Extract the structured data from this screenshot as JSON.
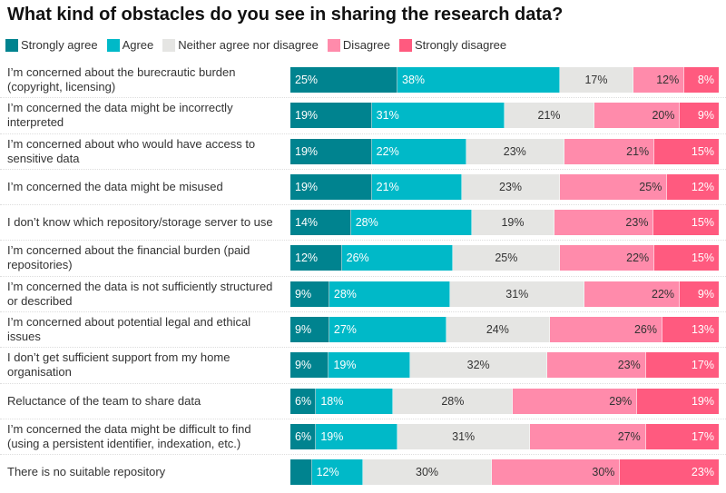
{
  "title": "What kind of obstacles do you see in sharing the research data?",
  "chart_data": {
    "type": "bar",
    "orientation": "horizontal",
    "stacked": "100%",
    "title": "What kind of obstacles do you see in sharing the research data?",
    "legend_position": "top-left",
    "series": [
      {
        "name": "Strongly agree",
        "color": "#00838f",
        "text_color": "#ffffff",
        "align": "left"
      },
      {
        "name": "Agree",
        "color": "#00b9c8",
        "text_color": "#ffffff",
        "align": "left"
      },
      {
        "name": "Neither agree nor disagree",
        "color": "#e5e5e3",
        "text_color": "#333333",
        "align": "center"
      },
      {
        "name": "Disagree",
        "color": "#ff8bab",
        "text_color": "#333333",
        "align": "right"
      },
      {
        "name": "Strongly disagree",
        "color": "#ff5a7f",
        "text_color": "#ffffff",
        "align": "right"
      }
    ],
    "categories": [
      {
        "label": "I’m concerned about the burecrautic burden (copyright, licensing)",
        "values": [
          25,
          38,
          17,
          12,
          8
        ]
      },
      {
        "label": "I’m concerned the data might be incorrectly interpreted",
        "values": [
          19,
          31,
          21,
          20,
          9
        ]
      },
      {
        "label": "I’m concerned about who would have access to sensitive data",
        "values": [
          19,
          22,
          23,
          21,
          15
        ]
      },
      {
        "label": "I’m concerned the data might be misused",
        "values": [
          19,
          21,
          23,
          25,
          12
        ]
      },
      {
        "label": "I don’t know which repository/storage server to use",
        "values": [
          14,
          28,
          19,
          23,
          15
        ]
      },
      {
        "label": "I’m concerned about the financial burden (paid repositories)",
        "values": [
          12,
          26,
          25,
          22,
          15
        ]
      },
      {
        "label": "I’m concerned the data is not sufficiently structured or described",
        "values": [
          9,
          28,
          31,
          22,
          9
        ]
      },
      {
        "label": "I’m concerned about potential legal and ethical issues",
        "values": [
          9,
          27,
          24,
          26,
          13
        ]
      },
      {
        "label": "I don’t get sufficient support from my home organisation",
        "values": [
          9,
          19,
          32,
          23,
          17
        ]
      },
      {
        "label": "Reluctance of the team to share data",
        "values": [
          6,
          18,
          28,
          29,
          19
        ]
      },
      {
        "label": "I’m concerned the data might be difficult to find (using a persistent identifier, indexation, etc.)",
        "values": [
          6,
          19,
          31,
          27,
          17
        ]
      },
      {
        "label": "There is no suitable repository",
        "values": [
          5,
          12,
          30,
          30,
          23
        ]
      }
    ],
    "value_suffix": "%"
  }
}
